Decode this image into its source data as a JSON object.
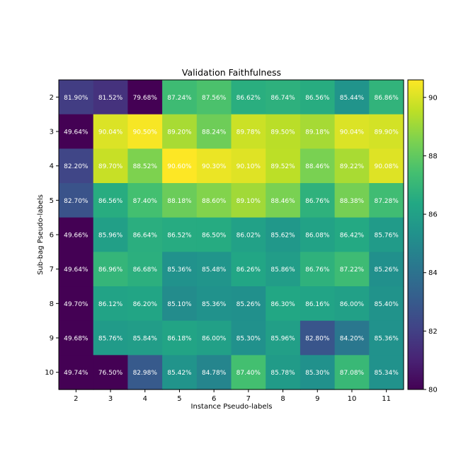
{
  "chart_data": {
    "type": "heatmap",
    "title": "Validation Faithfulness",
    "xlabel": "Instance Pseudo-labels",
    "ylabel": "Sub-bag Pseudo-labels",
    "x_categories": [
      "2",
      "3",
      "4",
      "5",
      "6",
      "7",
      "8",
      "9",
      "10",
      "11"
    ],
    "y_categories": [
      "2",
      "3",
      "4",
      "5",
      "6",
      "7",
      "8",
      "9",
      "10"
    ],
    "values": [
      [
        81.9,
        81.52,
        79.68,
        87.24,
        87.56,
        86.62,
        86.74,
        86.56,
        85.44,
        86.86
      ],
      [
        49.64,
        90.04,
        90.5,
        89.2,
        88.24,
        89.78,
        89.5,
        89.18,
        90.04,
        89.9
      ],
      [
        82.2,
        89.7,
        88.52,
        90.6,
        90.3,
        90.1,
        89.52,
        88.46,
        89.22,
        90.08
      ],
      [
        82.7,
        86.56,
        87.4,
        88.18,
        88.6,
        89.1,
        88.46,
        86.76,
        88.38,
        87.28
      ],
      [
        49.66,
        85.96,
        86.64,
        86.52,
        86.5,
        86.02,
        85.62,
        86.08,
        86.42,
        85.76
      ],
      [
        49.64,
        86.96,
        86.68,
        85.36,
        85.48,
        86.26,
        85.86,
        86.76,
        87.22,
        85.26
      ],
      [
        49.7,
        86.12,
        86.2,
        85.1,
        85.36,
        85.26,
        86.3,
        86.16,
        86.0,
        85.4
      ],
      [
        49.68,
        85.76,
        85.84,
        86.18,
        86.0,
        85.3,
        85.96,
        82.8,
        84.2,
        85.36
      ],
      [
        49.74,
        76.5,
        82.98,
        85.42,
        84.78,
        87.4,
        85.78,
        85.3,
        87.08,
        85.34
      ]
    ],
    "value_labels": [
      [
        "81.90%",
        "81.52%",
        "79.68%",
        "87.24%",
        "87.56%",
        "86.62%",
        "86.74%",
        "86.56%",
        "85.44%",
        "86.86%"
      ],
      [
        "49.64%",
        "90.04%",
        "90.50%",
        "89.20%",
        "88.24%",
        "89.78%",
        "89.50%",
        "89.18%",
        "90.04%",
        "89.90%"
      ],
      [
        "82.20%",
        "89.70%",
        "88.52%",
        "90.60%",
        "90.30%",
        "90.10%",
        "89.52%",
        "88.46%",
        "89.22%",
        "90.08%"
      ],
      [
        "82.70%",
        "86.56%",
        "87.40%",
        "88.18%",
        "88.60%",
        "89.10%",
        "88.46%",
        "86.76%",
        "88.38%",
        "87.28%"
      ],
      [
        "49.66%",
        "85.96%",
        "86.64%",
        "86.52%",
        "86.50%",
        "86.02%",
        "85.62%",
        "86.08%",
        "86.42%",
        "85.76%"
      ],
      [
        "49.64%",
        "86.96%",
        "86.68%",
        "85.36%",
        "85.48%",
        "86.26%",
        "85.86%",
        "86.76%",
        "87.22%",
        "85.26%"
      ],
      [
        "49.70%",
        "86.12%",
        "86.20%",
        "85.10%",
        "85.36%",
        "85.26%",
        "86.30%",
        "86.16%",
        "86.00%",
        "85.40%"
      ],
      [
        "49.68%",
        "85.76%",
        "85.84%",
        "86.18%",
        "86.00%",
        "85.30%",
        "85.96%",
        "82.80%",
        "84.20%",
        "85.36%"
      ],
      [
        "49.74%",
        "76.50%",
        "82.98%",
        "85.42%",
        "84.78%",
        "87.40%",
        "85.78%",
        "85.30%",
        "87.08%",
        "85.34%"
      ]
    ],
    "colormap": "viridis",
    "color_range": [
      80,
      90.6
    ],
    "colorbar_ticks": [
      "80",
      "82",
      "84",
      "86",
      "88",
      "90"
    ],
    "grid": false,
    "legend": "none"
  }
}
